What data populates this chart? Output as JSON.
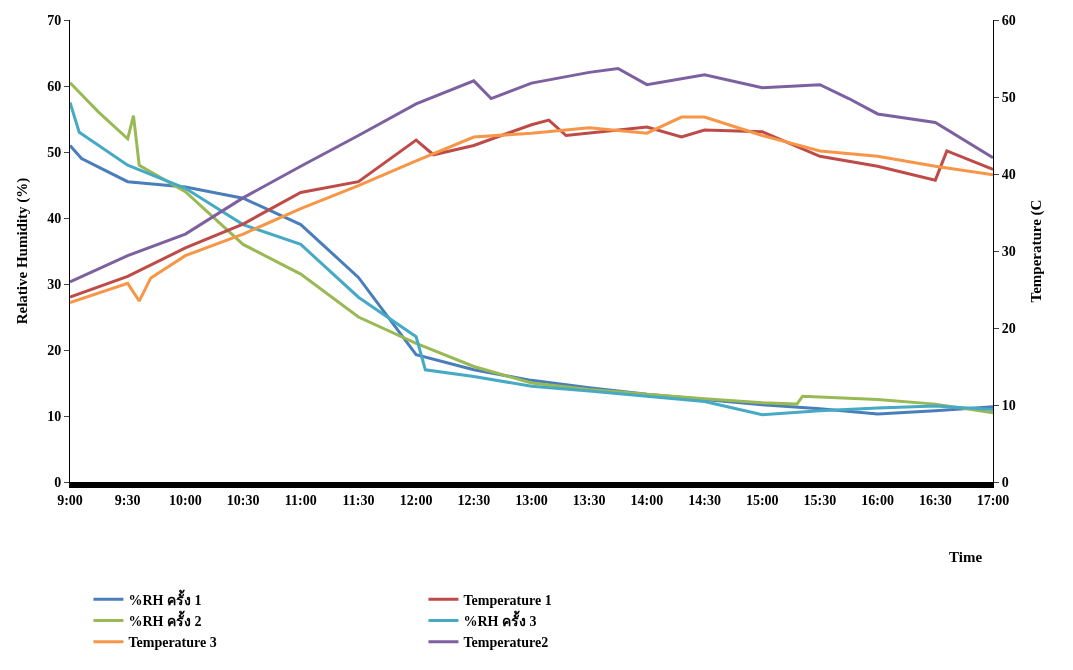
{
  "chart_data": {
    "type": "line",
    "xlabel": "Time",
    "ylabel": "Relative Humidity (%)",
    "y2label": "Temperature (C",
    "xlim": [
      9,
      17
    ],
    "xticks": [
      {
        "value": 9,
        "label": "9:00"
      },
      {
        "value": 9.5,
        "label": "9:30"
      },
      {
        "value": 10,
        "label": "10:00"
      },
      {
        "value": 10.5,
        "label": "10:30"
      },
      {
        "value": 11,
        "label": "11:00"
      },
      {
        "value": 11.5,
        "label": "11:30"
      },
      {
        "value": 12,
        "label": "12:00"
      },
      {
        "value": 12.5,
        "label": "12:30"
      },
      {
        "value": 13,
        "label": "13:00"
      },
      {
        "value": 13.5,
        "label": "13:30"
      },
      {
        "value": 14,
        "label": "14:00"
      },
      {
        "value": 14.5,
        "label": "14:30"
      },
      {
        "value": 15,
        "label": "15:00"
      },
      {
        "value": 15.5,
        "label": "15:30"
      },
      {
        "value": 16,
        "label": "16:00"
      },
      {
        "value": 16.5,
        "label": "16:30"
      },
      {
        "value": 17,
        "label": "17:00"
      }
    ],
    "ylim": [
      0,
      70
    ],
    "yticks": [
      0,
      10,
      20,
      30,
      40,
      50,
      60,
      70
    ],
    "y2lim": [
      0,
      60
    ],
    "y2ticks": [
      0,
      10,
      20,
      30,
      40,
      50,
      60
    ],
    "legend": "bottom",
    "marker": "none",
    "line_style": "solid",
    "series": [
      {
        "name": "%RH ครั้ง 1",
        "color": "#4a7ebb",
        "x": [
          9,
          9.1,
          9.5,
          10,
          10.5,
          11,
          11.5,
          12,
          12.5,
          13,
          13.5,
          14,
          14.5,
          15,
          15.5,
          16,
          16.5,
          17
        ],
        "values": [
          51,
          49,
          45.5,
          44.7,
          43,
          39,
          31,
          19.3,
          17,
          15.4,
          14.3,
          13.3,
          12.5,
          11.7,
          11.1,
          10.3,
          10.8,
          11.4
        ]
      },
      {
        "name": "Temperature 1",
        "color": "#be4b48",
        "axis": "y2",
        "x": [
          9,
          9.5,
          10,
          10.5,
          11,
          11.5,
          12,
          12.15,
          12.5,
          13,
          13.15,
          13.3,
          14,
          14.3,
          14.5,
          15,
          15.5,
          16,
          16.5,
          16.6,
          17
        ],
        "values": [
          24,
          26.7,
          30.4,
          33.5,
          37.6,
          39,
          44.4,
          42.5,
          43.7,
          46.4,
          47,
          45,
          46.1,
          44.8,
          45.7,
          45.5,
          42.3,
          41,
          39.2,
          43,
          40.6
        ]
      },
      {
        "name": "%RH ครั้ง 2",
        "color": "#98b954",
        "x": [
          9,
          9.25,
          9.5,
          9.55,
          9.6,
          10,
          10.5,
          11,
          11.5,
          12,
          12.5,
          13,
          13.5,
          14,
          14.5,
          15,
          15.3,
          15.35,
          16,
          16.5,
          17
        ],
        "values": [
          60.5,
          56,
          52,
          55.5,
          48,
          44,
          36,
          31.5,
          25,
          21,
          17.5,
          15,
          14,
          13.3,
          12.6,
          12,
          11.8,
          13,
          12.5,
          11.8,
          10.5
        ]
      },
      {
        "name": "%RH ครั้ง 3",
        "color": "#46aac5",
        "x": [
          9,
          9.08,
          9.5,
          10,
          10.5,
          11,
          11.5,
          12,
          12.08,
          12.5,
          13,
          13.5,
          14,
          14.5,
          15,
          15.5,
          16,
          16.5,
          17
        ],
        "values": [
          57.5,
          53,
          48,
          44.5,
          39,
          36,
          28,
          22,
          17,
          16,
          14.5,
          13.8,
          13,
          12.2,
          10.2,
          10.8,
          11.2,
          11.5,
          11
        ]
      },
      {
        "name": "Temperature 3",
        "color": "#f79646",
        "axis": "y2",
        "x": [
          9,
          9.5,
          9.6,
          9.7,
          10,
          10.5,
          11,
          11.5,
          12,
          12.5,
          13,
          13.5,
          14,
          14.3,
          14.5,
          15,
          15.5,
          16,
          16.5,
          17
        ],
        "values": [
          23.3,
          25.8,
          23.5,
          26.5,
          29.4,
          32.2,
          35.5,
          38.5,
          41.7,
          44.8,
          45.3,
          46,
          45.3,
          47.4,
          47.4,
          45,
          43,
          42.3,
          41,
          39.9
        ]
      },
      {
        "name": "Temperature2",
        "color": "#7d60a0",
        "axis": "y2",
        "x": [
          9,
          9.5,
          10,
          10.5,
          11,
          11.5,
          12,
          12.5,
          12.65,
          13,
          13.5,
          13.75,
          14,
          14.5,
          15,
          15.5,
          15.75,
          16,
          16.5,
          17
        ],
        "values": [
          26,
          29.4,
          32.2,
          36.9,
          41,
          45,
          49.1,
          52.1,
          49.8,
          51.8,
          53.2,
          53.7,
          51.6,
          52.9,
          51.2,
          51.6,
          49.8,
          47.8,
          46.7,
          42.1
        ]
      }
    ]
  }
}
